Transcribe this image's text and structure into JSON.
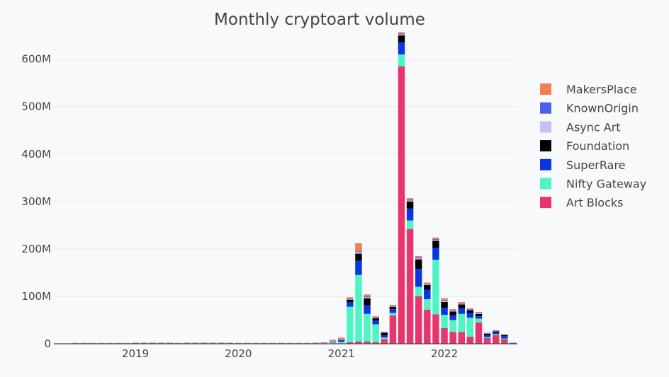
{
  "chart_data": {
    "type": "bar",
    "stacked": true,
    "title": "Monthly cryptoart volume",
    "xlabel": "",
    "ylabel": "",
    "ylim": [
      0,
      680
    ],
    "y_unit_suffix": "M",
    "y_ticks": [
      0,
      100,
      200,
      300,
      400,
      500,
      600
    ],
    "y_tick_labels": [
      "0",
      "100M",
      "200M",
      "300M",
      "400M",
      "500M",
      "600M"
    ],
    "x_tick_labels": [
      "2019",
      "2020",
      "2021",
      "2022"
    ],
    "x_tick_positions": [
      "2019-01",
      "2020-01",
      "2021-01",
      "2022-01"
    ],
    "legend_position": "right",
    "grid": true,
    "categories": [
      "2018-04",
      "2018-05",
      "2018-06",
      "2018-07",
      "2018-08",
      "2018-09",
      "2018-10",
      "2018-11",
      "2018-12",
      "2019-01",
      "2019-02",
      "2019-03",
      "2019-04",
      "2019-05",
      "2019-06",
      "2019-07",
      "2019-08",
      "2019-09",
      "2019-10",
      "2019-11",
      "2019-12",
      "2020-01",
      "2020-02",
      "2020-03",
      "2020-04",
      "2020-05",
      "2020-06",
      "2020-07",
      "2020-08",
      "2020-09",
      "2020-10",
      "2020-11",
      "2020-12",
      "2021-01",
      "2021-02",
      "2021-03",
      "2021-04",
      "2021-05",
      "2021-06",
      "2021-07",
      "2021-08",
      "2021-09",
      "2021-10",
      "2021-11",
      "2021-12",
      "2022-01",
      "2022-02",
      "2022-03",
      "2022-04",
      "2022-05",
      "2022-06",
      "2022-07",
      "2022-08",
      "2022-09"
    ],
    "series": [
      {
        "name": "Art Blocks",
        "color": "#e8356d",
        "values": [
          0,
          0,
          0,
          0,
          0,
          0,
          0,
          0,
          0,
          0,
          0,
          0,
          0,
          0,
          0,
          0,
          0,
          0,
          0,
          0,
          0,
          0,
          0,
          0,
          0,
          0,
          0,
          0,
          0,
          0,
          0,
          0,
          0.5,
          1,
          3,
          5,
          5,
          3,
          10,
          60,
          585,
          242,
          100,
          72,
          62,
          33,
          25,
          25,
          15,
          45,
          12,
          18,
          10,
          1
        ]
      },
      {
        "name": "Nifty Gateway",
        "color": "#4cf5c3",
        "values": [
          0,
          0,
          0,
          0,
          0,
          0,
          0,
          0,
          0,
          0,
          0,
          0,
          0,
          0,
          0,
          0,
          0,
          0,
          0,
          0,
          0,
          0,
          0,
          0,
          0,
          0,
          0,
          0,
          0,
          0,
          0,
          0,
          2,
          3,
          75,
          140,
          58,
          38,
          3,
          5,
          25,
          18,
          20,
          22,
          115,
          28,
          25,
          38,
          40,
          8,
          2,
          2,
          1,
          0
        ]
      },
      {
        "name": "SuperRare",
        "color": "#0a35e0",
        "values": [
          0,
          0,
          0.5,
          0.5,
          0.5,
          0.5,
          0.5,
          0.5,
          0.5,
          1,
          1,
          1,
          1,
          1,
          0.5,
          1,
          1,
          1,
          1,
          1,
          1,
          0.5,
          0.5,
          0.5,
          0.5,
          0.5,
          0.5,
          0.5,
          0.5,
          0.5,
          0.5,
          1,
          1,
          3,
          10,
          30,
          18,
          8,
          5,
          8,
          25,
          25,
          38,
          20,
          25,
          15,
          10,
          12,
          10,
          5,
          4,
          4,
          5,
          1
        ]
      },
      {
        "name": "Foundation",
        "color": "#000000",
        "values": [
          0,
          0,
          0,
          0,
          0,
          0,
          0,
          0,
          0,
          0,
          0,
          0,
          0,
          0,
          0,
          0,
          0,
          0,
          0,
          0,
          0,
          0,
          0,
          0,
          0,
          0,
          0,
          0,
          0,
          0,
          0,
          0,
          0,
          1,
          5,
          15,
          15,
          5,
          5,
          5,
          15,
          15,
          20,
          10,
          15,
          12,
          8,
          8,
          6,
          5,
          3,
          2,
          2,
          0
        ]
      },
      {
        "name": "Async Art",
        "color": "#c5c3f5",
        "values": [
          0,
          0,
          0,
          0,
          0,
          0,
          0,
          0,
          0,
          0,
          0,
          0,
          0,
          0,
          0,
          0,
          0,
          0,
          0,
          0,
          0,
          0,
          0,
          0,
          0,
          0,
          0,
          0,
          0,
          0,
          0.5,
          0.5,
          1,
          1,
          1,
          3,
          2,
          1,
          0.5,
          1,
          2,
          2,
          2,
          1,
          2,
          2,
          1,
          1,
          1,
          1,
          0.5,
          0.5,
          0.5,
          0
        ]
      },
      {
        "name": "KnownOrigin",
        "color": "#4a62e8",
        "values": [
          0,
          0,
          0.3,
          0.3,
          0.3,
          0.3,
          0.3,
          0.3,
          0.3,
          0.5,
          0.5,
          0.5,
          0.5,
          0.5,
          0.5,
          0.5,
          0.5,
          0.5,
          0.5,
          0.5,
          0.5,
          0.5,
          0.5,
          0.5,
          0.5,
          0.5,
          0.5,
          0.5,
          0.5,
          0.5,
          0.5,
          0.5,
          1,
          1,
          1,
          2,
          2,
          1,
          1,
          1,
          2,
          2,
          2,
          1,
          2,
          2,
          1,
          1,
          1,
          1,
          1,
          1,
          1,
          0
        ]
      },
      {
        "name": "MakersPlace",
        "color": "#f47e52",
        "values": [
          0,
          0,
          0.3,
          0.3,
          0.3,
          0.3,
          0.3,
          0.3,
          0.3,
          0.5,
          0.5,
          0.5,
          0.5,
          0.5,
          1,
          0.5,
          0.5,
          0.5,
          0.5,
          0.5,
          0.5,
          0.5,
          0.5,
          0.5,
          0.5,
          0.5,
          0.5,
          0.5,
          0.5,
          0.5,
          0.5,
          1,
          3,
          3,
          3,
          17,
          4,
          2,
          1,
          2,
          3,
          3,
          3,
          3,
          3,
          4,
          3,
          3,
          2,
          2,
          1,
          1,
          1,
          0
        ]
      }
    ],
    "legend_order": [
      "MakersPlace",
      "KnownOrigin",
      "Async Art",
      "Foundation",
      "SuperRare",
      "Nifty Gateway",
      "Art Blocks"
    ]
  }
}
